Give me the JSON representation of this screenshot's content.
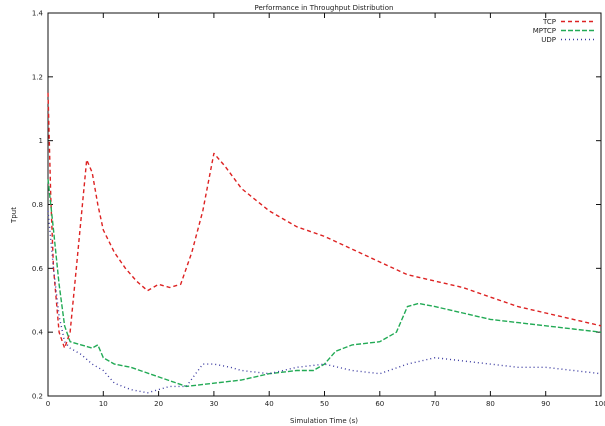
{
  "chart_data": {
    "type": "line",
    "title": "Performance in Throughput Distribution",
    "xlabel": "Simulation Time (s)",
    "ylabel": "Tput",
    "xlim": [
      0,
      100
    ],
    "ylim": [
      0.2,
      1.4
    ],
    "x_ticks": [
      0,
      10,
      20,
      30,
      40,
      50,
      60,
      70,
      80,
      90,
      100
    ],
    "y_ticks": [
      0.2,
      0.4,
      0.6,
      0.8,
      1.0,
      1.2,
      1.4
    ],
    "y_tick_labels": [
      "0.2",
      "0.4",
      "0.6",
      "0.8",
      "1",
      "1.2",
      "1.4"
    ],
    "grid": false,
    "legend": "top-right",
    "series": [
      {
        "name": "TCP",
        "color": "#dd2222",
        "dash": "4,3",
        "points": [
          [
            0,
            1.15
          ],
          [
            0.5,
            0.82
          ],
          [
            1,
            0.6
          ],
          [
            2,
            0.4
          ],
          [
            3,
            0.35
          ],
          [
            4,
            0.4
          ],
          [
            5,
            0.58
          ],
          [
            6,
            0.76
          ],
          [
            7,
            0.94
          ],
          [
            8,
            0.9
          ],
          [
            9,
            0.8
          ],
          [
            10,
            0.72
          ],
          [
            12,
            0.65
          ],
          [
            14,
            0.6
          ],
          [
            16,
            0.56
          ],
          [
            18,
            0.53
          ],
          [
            20,
            0.55
          ],
          [
            22,
            0.54
          ],
          [
            24,
            0.55
          ],
          [
            26,
            0.65
          ],
          [
            28,
            0.78
          ],
          [
            30,
            0.96
          ],
          [
            32,
            0.92
          ],
          [
            35,
            0.85
          ],
          [
            40,
            0.78
          ],
          [
            45,
            0.73
          ],
          [
            50,
            0.7
          ],
          [
            55,
            0.66
          ],
          [
            60,
            0.62
          ],
          [
            65,
            0.58
          ],
          [
            70,
            0.56
          ],
          [
            75,
            0.54
          ],
          [
            80,
            0.51
          ],
          [
            85,
            0.48
          ],
          [
            90,
            0.46
          ],
          [
            95,
            0.44
          ],
          [
            100,
            0.42
          ]
        ]
      },
      {
        "name": "MPTCP",
        "color": "#22aa55",
        "dash": "5,2",
        "points": [
          [
            0,
            0.88
          ],
          [
            1,
            0.72
          ],
          [
            2,
            0.55
          ],
          [
            3,
            0.42
          ],
          [
            4,
            0.37
          ],
          [
            6,
            0.36
          ],
          [
            8,
            0.35
          ],
          [
            9,
            0.36
          ],
          [
            10,
            0.32
          ],
          [
            12,
            0.3
          ],
          [
            15,
            0.29
          ],
          [
            20,
            0.26
          ],
          [
            25,
            0.23
          ],
          [
            30,
            0.24
          ],
          [
            35,
            0.25
          ],
          [
            40,
            0.27
          ],
          [
            45,
            0.28
          ],
          [
            48,
            0.28
          ],
          [
            50,
            0.3
          ],
          [
            52,
            0.34
          ],
          [
            55,
            0.36
          ],
          [
            60,
            0.37
          ],
          [
            63,
            0.4
          ],
          [
            65,
            0.48
          ],
          [
            67,
            0.49
          ],
          [
            70,
            0.48
          ],
          [
            75,
            0.46
          ],
          [
            80,
            0.44
          ],
          [
            85,
            0.43
          ],
          [
            90,
            0.42
          ],
          [
            95,
            0.41
          ],
          [
            100,
            0.4
          ]
        ]
      },
      {
        "name": "UDP",
        "color": "#3a3aa0",
        "dash": "1,3",
        "points": [
          [
            0,
            0.78
          ],
          [
            1,
            0.6
          ],
          [
            2,
            0.45
          ],
          [
            3,
            0.37
          ],
          [
            4,
            0.35
          ],
          [
            6,
            0.33
          ],
          [
            8,
            0.3
          ],
          [
            10,
            0.28
          ],
          [
            12,
            0.24
          ],
          [
            15,
            0.22
          ],
          [
            18,
            0.21
          ],
          [
            20,
            0.22
          ],
          [
            22,
            0.23
          ],
          [
            25,
            0.23
          ],
          [
            28,
            0.3
          ],
          [
            30,
            0.3
          ],
          [
            33,
            0.29
          ],
          [
            35,
            0.28
          ],
          [
            40,
            0.27
          ],
          [
            45,
            0.29
          ],
          [
            50,
            0.3
          ],
          [
            55,
            0.28
          ],
          [
            60,
            0.27
          ],
          [
            65,
            0.3
          ],
          [
            70,
            0.32
          ],
          [
            75,
            0.31
          ],
          [
            80,
            0.3
          ],
          [
            85,
            0.29
          ],
          [
            90,
            0.29
          ],
          [
            95,
            0.28
          ],
          [
            100,
            0.27
          ]
        ]
      }
    ]
  }
}
